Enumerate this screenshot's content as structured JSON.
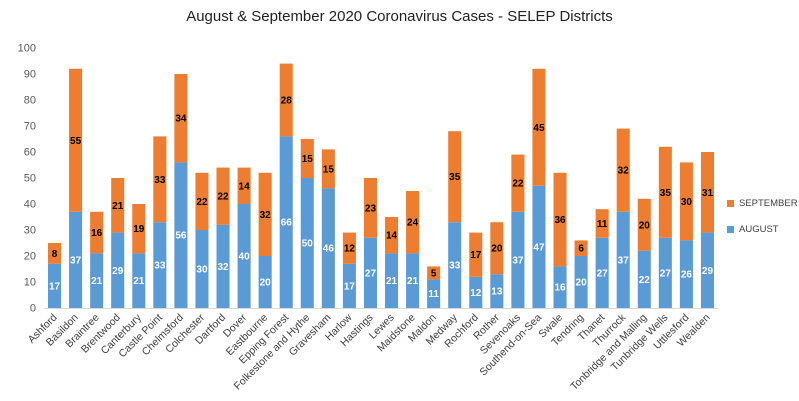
{
  "chart_data": {
    "type": "bar",
    "stacked": true,
    "title": "August & September 2020 Coronavirus Cases - SELEP Districts",
    "xlabel": "",
    "ylabel": "",
    "ylim": [
      0,
      100
    ],
    "yticks": [
      "0",
      "10",
      "20",
      "30",
      "40",
      "50",
      "60",
      "70",
      "80",
      "90",
      "100"
    ],
    "grid": false,
    "legend_position": "right",
    "categories": [
      "Ashford",
      "Basildon",
      "Braintree",
      "Brentwood",
      "Canterbury",
      "Castle Point",
      "Chelmsford",
      "Colchester",
      "Dartford",
      "Dover",
      "Eastbourne",
      "Epping Forest",
      "Folkestone and Hythe",
      "Gravesham",
      "Harlow",
      "Hastings",
      "Lewes",
      "Maidstone",
      "Maldon",
      "Medway",
      "Rochford",
      "Rother",
      "Sevenoaks",
      "Southend-on-Sea",
      "Swale",
      "Tendring",
      "Thanet",
      "Thurrock",
      "Tonbridge and Malling",
      "Tunbridge Wells",
      "Uttlesford",
      "Wealden"
    ],
    "series": [
      {
        "name": "AUGUST",
        "color": "#5B9BD5",
        "label_color": "#ffffff",
        "values": [
          17,
          37,
          21,
          29,
          21,
          33,
          56,
          30,
          32,
          40,
          20,
          66,
          50,
          46,
          17,
          27,
          21,
          21,
          11,
          33,
          12,
          13,
          37,
          47,
          16,
          20,
          27,
          37,
          22,
          27,
          26,
          29
        ]
      },
      {
        "name": "SEPTEMBER",
        "color": "#ED7D31",
        "label_color": "#000000",
        "values": [
          8,
          55,
          16,
          21,
          19,
          33,
          34,
          22,
          22,
          14,
          32,
          28,
          15,
          15,
          12,
          23,
          14,
          24,
          5,
          35,
          17,
          20,
          22,
          45,
          36,
          6,
          11,
          32,
          20,
          35,
          30,
          31
        ]
      }
    ]
  }
}
